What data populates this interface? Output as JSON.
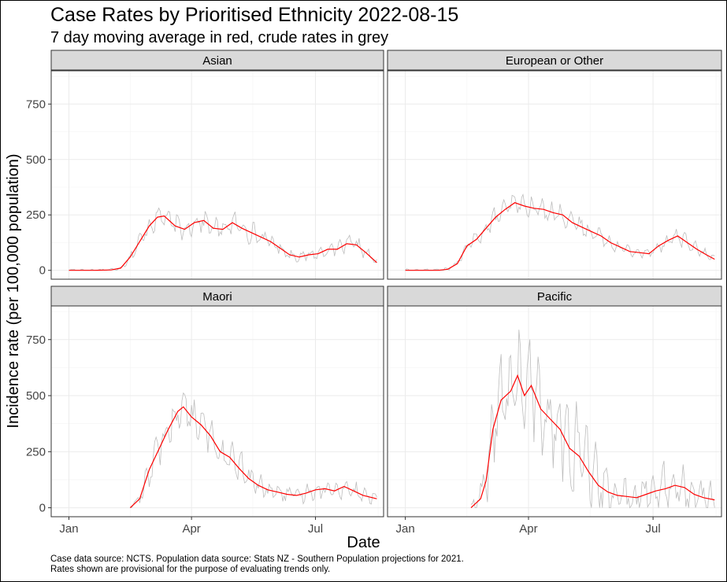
{
  "title": "Case Rates by Prioritised Ethnicity 2022-08-15",
  "subtitle": "7 day moving average in red, crude rates in grey",
  "caption_lines": [
    "Case data source: NCTS. Population data source: Stats NZ -  Southern Population projections for 2021.",
    "Rates shown are provisional for the purpose of evaluating trends only."
  ],
  "colors": {
    "moving_average": "#ff0000",
    "crude": "#bdbdbd",
    "strip_fill": "#d9d9d9",
    "grid": "#ebebeb"
  },
  "chart_data": {
    "type": "line",
    "facet_layout": "2x2",
    "xlabel": "Date",
    "ylabel": "Incidence rate (per 100,000 population)",
    "x_ticks": [
      "Jan",
      "Apr",
      "Jul"
    ],
    "x_tick_dates": [
      "2022-01-01",
      "2022-04-01",
      "2022-07-01"
    ],
    "xlim": [
      "2021-12-19",
      "2022-08-20"
    ],
    "y_ticks": [
      0,
      250,
      500,
      750
    ],
    "ylim": [
      -40,
      900
    ],
    "grid": true,
    "series_legend": "none",
    "panels": [
      {
        "name": "Asian",
        "moving_average": [
          {
            "x": "2022-01-01",
            "y": 0
          },
          {
            "x": "2022-01-20",
            "y": 0
          },
          {
            "x": "2022-02-01",
            "y": 2
          },
          {
            "x": "2022-02-08",
            "y": 10
          },
          {
            "x": "2022-02-15",
            "y": 60
          },
          {
            "x": "2022-02-22",
            "y": 130
          },
          {
            "x": "2022-03-01",
            "y": 200
          },
          {
            "x": "2022-03-07",
            "y": 240
          },
          {
            "x": "2022-03-12",
            "y": 245
          },
          {
            "x": "2022-03-20",
            "y": 200
          },
          {
            "x": "2022-03-27",
            "y": 185
          },
          {
            "x": "2022-04-03",
            "y": 215
          },
          {
            "x": "2022-04-10",
            "y": 225
          },
          {
            "x": "2022-04-17",
            "y": 190
          },
          {
            "x": "2022-04-24",
            "y": 185
          },
          {
            "x": "2022-05-01",
            "y": 215
          },
          {
            "x": "2022-05-08",
            "y": 190
          },
          {
            "x": "2022-05-15",
            "y": 170
          },
          {
            "x": "2022-05-22",
            "y": 150
          },
          {
            "x": "2022-05-29",
            "y": 130
          },
          {
            "x": "2022-06-05",
            "y": 100
          },
          {
            "x": "2022-06-12",
            "y": 70
          },
          {
            "x": "2022-06-19",
            "y": 60
          },
          {
            "x": "2022-06-26",
            "y": 70
          },
          {
            "x": "2022-07-03",
            "y": 75
          },
          {
            "x": "2022-07-10",
            "y": 95
          },
          {
            "x": "2022-07-17",
            "y": 95
          },
          {
            "x": "2022-07-24",
            "y": 120
          },
          {
            "x": "2022-07-31",
            "y": 115
          },
          {
            "x": "2022-08-07",
            "y": 80
          },
          {
            "x": "2022-08-15",
            "y": 35
          }
        ],
        "crude_jitter": 55
      },
      {
        "name": "European or Other",
        "moving_average": [
          {
            "x": "2022-01-01",
            "y": 0
          },
          {
            "x": "2022-01-25",
            "y": 0
          },
          {
            "x": "2022-02-01",
            "y": 5
          },
          {
            "x": "2022-02-08",
            "y": 30
          },
          {
            "x": "2022-02-15",
            "y": 110
          },
          {
            "x": "2022-02-22",
            "y": 140
          },
          {
            "x": "2022-03-01",
            "y": 190
          },
          {
            "x": "2022-03-08",
            "y": 240
          },
          {
            "x": "2022-03-15",
            "y": 275
          },
          {
            "x": "2022-03-22",
            "y": 305
          },
          {
            "x": "2022-03-29",
            "y": 290
          },
          {
            "x": "2022-04-05",
            "y": 280
          },
          {
            "x": "2022-04-12",
            "y": 275
          },
          {
            "x": "2022-04-19",
            "y": 260
          },
          {
            "x": "2022-04-26",
            "y": 250
          },
          {
            "x": "2022-05-03",
            "y": 215
          },
          {
            "x": "2022-05-10",
            "y": 195
          },
          {
            "x": "2022-05-17",
            "y": 175
          },
          {
            "x": "2022-05-24",
            "y": 155
          },
          {
            "x": "2022-05-31",
            "y": 125
          },
          {
            "x": "2022-06-07",
            "y": 105
          },
          {
            "x": "2022-06-14",
            "y": 85
          },
          {
            "x": "2022-06-21",
            "y": 80
          },
          {
            "x": "2022-06-28",
            "y": 75
          },
          {
            "x": "2022-07-05",
            "y": 110
          },
          {
            "x": "2022-07-12",
            "y": 135
          },
          {
            "x": "2022-07-19",
            "y": 155
          },
          {
            "x": "2022-07-26",
            "y": 125
          },
          {
            "x": "2022-08-02",
            "y": 95
          },
          {
            "x": "2022-08-09",
            "y": 70
          },
          {
            "x": "2022-08-15",
            "y": 50
          }
        ],
        "crude_jitter": 50
      },
      {
        "name": "Maori",
        "moving_average": [
          {
            "x": "2022-02-15",
            "y": 0
          },
          {
            "x": "2022-02-22",
            "y": 40
          },
          {
            "x": "2022-03-01",
            "y": 170
          },
          {
            "x": "2022-03-08",
            "y": 260
          },
          {
            "x": "2022-03-15",
            "y": 350
          },
          {
            "x": "2022-03-22",
            "y": 430
          },
          {
            "x": "2022-03-26",
            "y": 450
          },
          {
            "x": "2022-04-01",
            "y": 405
          },
          {
            "x": "2022-04-08",
            "y": 370
          },
          {
            "x": "2022-04-15",
            "y": 320
          },
          {
            "x": "2022-04-22",
            "y": 250
          },
          {
            "x": "2022-04-29",
            "y": 225
          },
          {
            "x": "2022-05-06",
            "y": 175
          },
          {
            "x": "2022-05-13",
            "y": 130
          },
          {
            "x": "2022-05-20",
            "y": 100
          },
          {
            "x": "2022-05-27",
            "y": 80
          },
          {
            "x": "2022-06-03",
            "y": 70
          },
          {
            "x": "2022-06-10",
            "y": 60
          },
          {
            "x": "2022-06-17",
            "y": 55
          },
          {
            "x": "2022-06-24",
            "y": 65
          },
          {
            "x": "2022-07-01",
            "y": 80
          },
          {
            "x": "2022-07-08",
            "y": 85
          },
          {
            "x": "2022-07-15",
            "y": 75
          },
          {
            "x": "2022-07-22",
            "y": 95
          },
          {
            "x": "2022-07-29",
            "y": 75
          },
          {
            "x": "2022-08-05",
            "y": 55
          },
          {
            "x": "2022-08-15",
            "y": 40
          }
        ],
        "crude_jitter": 90
      },
      {
        "name": "Pacific",
        "moving_average": [
          {
            "x": "2022-02-18",
            "y": 0
          },
          {
            "x": "2022-02-25",
            "y": 40
          },
          {
            "x": "2022-03-01",
            "y": 120
          },
          {
            "x": "2022-03-06",
            "y": 350
          },
          {
            "x": "2022-03-12",
            "y": 480
          },
          {
            "x": "2022-03-19",
            "y": 520
          },
          {
            "x": "2022-03-24",
            "y": 590
          },
          {
            "x": "2022-03-29",
            "y": 500
          },
          {
            "x": "2022-04-03",
            "y": 545
          },
          {
            "x": "2022-04-10",
            "y": 440
          },
          {
            "x": "2022-04-17",
            "y": 395
          },
          {
            "x": "2022-04-24",
            "y": 350
          },
          {
            "x": "2022-05-01",
            "y": 265
          },
          {
            "x": "2022-05-08",
            "y": 230
          },
          {
            "x": "2022-05-15",
            "y": 160
          },
          {
            "x": "2022-05-22",
            "y": 100
          },
          {
            "x": "2022-05-29",
            "y": 70
          },
          {
            "x": "2022-06-05",
            "y": 55
          },
          {
            "x": "2022-06-12",
            "y": 50
          },
          {
            "x": "2022-06-19",
            "y": 45
          },
          {
            "x": "2022-06-26",
            "y": 60
          },
          {
            "x": "2022-07-03",
            "y": 75
          },
          {
            "x": "2022-07-10",
            "y": 85
          },
          {
            "x": "2022-07-17",
            "y": 100
          },
          {
            "x": "2022-07-24",
            "y": 90
          },
          {
            "x": "2022-07-31",
            "y": 60
          },
          {
            "x": "2022-08-07",
            "y": 45
          },
          {
            "x": "2022-08-15",
            "y": 35
          }
        ],
        "crude_jitter": 230
      }
    ]
  }
}
